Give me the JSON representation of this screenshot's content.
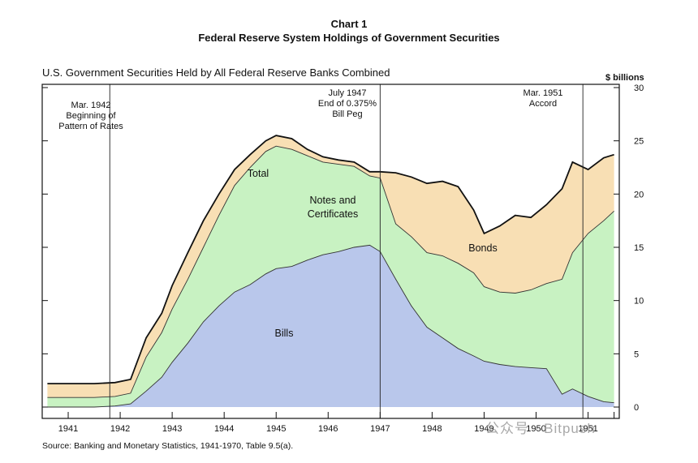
{
  "header": {
    "chart_number": "Chart 1",
    "title": "Federal Reserve System Holdings of Government Securities"
  },
  "subtitle": "U.S. Government Securities Held by All Federal Reserve Banks Combined",
  "unit_label": "$ billions",
  "source": "Source:  Banking and Monetary Statistics, 1941-1970, Table 9.5(a).",
  "watermark": "公众号 · Bitpush",
  "colors": {
    "bills": "#b9c7eb",
    "notes": "#c8f2c2",
    "bonds": "#f8dfb4",
    "line": "#111111"
  },
  "chart_data": {
    "type": "area",
    "stacked": true,
    "title": "Federal Reserve System Holdings of Government Securities",
    "subtitle": "U.S. Government Securities Held by All Federal Reserve Banks Combined",
    "ylabel": "$ billions",
    "ylim": [
      0,
      30
    ],
    "yticks": [
      0,
      5,
      10,
      15,
      20,
      25,
      30
    ],
    "xlim": [
      1940.5,
      1951.6
    ],
    "x_tick_labels": [
      "1941",
      "1942",
      "1943",
      "1944",
      "1945",
      "1946",
      "1947",
      "1948",
      "1949",
      "1950",
      "1951"
    ],
    "x": [
      1940.6,
      1941.0,
      1941.5,
      1941.9,
      1942.2,
      1942.5,
      1942.8,
      1943.0,
      1943.3,
      1943.6,
      1943.9,
      1944.2,
      1944.5,
      1944.8,
      1945.0,
      1945.3,
      1945.6,
      1945.9,
      1946.2,
      1946.5,
      1946.8,
      1947.0,
      1947.3,
      1947.6,
      1947.9,
      1948.2,
      1948.5,
      1948.8,
      1949.0,
      1949.3,
      1949.6,
      1949.9,
      1950.2,
      1950.5,
      1950.7,
      1951.0,
      1951.3,
      1951.5
    ],
    "series": [
      {
        "name": "Bills",
        "values": [
          0.0,
          0.0,
          0.0,
          0.1,
          0.3,
          1.5,
          2.8,
          4.2,
          6.0,
          8.0,
          9.5,
          10.8,
          11.5,
          12.5,
          13.0,
          13.2,
          13.8,
          14.3,
          14.6,
          15.0,
          15.2,
          14.6,
          12.0,
          9.5,
          7.5,
          6.5,
          5.5,
          4.8,
          4.3,
          4.0,
          3.8,
          3.7,
          3.6,
          1.2,
          1.7,
          1.0,
          0.5,
          0.4
        ]
      },
      {
        "name": "Notes and Certificates",
        "values": [
          0.9,
          0.9,
          0.9,
          0.9,
          1.0,
          3.2,
          4.2,
          5.0,
          6.0,
          7.0,
          8.5,
          10.0,
          11.0,
          11.5,
          11.5,
          11.0,
          9.8,
          8.7,
          8.2,
          7.6,
          6.5,
          6.9,
          5.2,
          6.5,
          7.0,
          7.7,
          8.0,
          7.8,
          7.0,
          6.8,
          6.9,
          7.3,
          8.0,
          10.8,
          12.8,
          15.3,
          17.0,
          18.0
        ]
      },
      {
        "name": "Bonds",
        "values": [
          1.3,
          1.3,
          1.3,
          1.3,
          1.3,
          1.8,
          1.8,
          2.2,
          2.5,
          2.5,
          2.0,
          1.5,
          1.2,
          1.0,
          1.0,
          1.0,
          0.6,
          0.5,
          0.4,
          0.4,
          0.4,
          0.6,
          4.8,
          5.6,
          6.5,
          7.0,
          7.2,
          5.9,
          5.0,
          6.2,
          7.3,
          6.8,
          7.4,
          8.5,
          8.5,
          6.0,
          5.9,
          5.3
        ]
      }
    ],
    "total": {
      "name": "Total",
      "values": [
        2.2,
        2.2,
        2.2,
        2.3,
        2.6,
        6.5,
        8.8,
        11.4,
        14.5,
        17.5,
        20.0,
        22.3,
        23.7,
        25.0,
        25.5,
        25.2,
        24.2,
        23.5,
        23.2,
        23.0,
        22.1,
        22.1,
        22.0,
        21.6,
        21.0,
        21.2,
        20.7,
        18.5,
        16.3,
        17.0,
        18.0,
        17.8,
        19.0,
        20.5,
        23.0,
        22.3,
        23.4,
        23.7
      ]
    },
    "annotations": [
      {
        "x": 1941.8,
        "lines": [
          "Mar. 1942",
          "Beginning of",
          "Pattern of Rates"
        ]
      },
      {
        "x": 1947.0,
        "lines": [
          "July 1947",
          "End of 0.375%",
          "Bill Peg"
        ]
      },
      {
        "x": 1950.9,
        "lines": [
          "Mar. 1951",
          "Accord"
        ]
      }
    ],
    "area_labels": [
      {
        "series": "Total",
        "lines": [
          "Total"
        ]
      },
      {
        "series": "Notes and Certificates",
        "lines": [
          "Notes and",
          "Certificates"
        ]
      },
      {
        "series": "Bonds",
        "lines": [
          "Bonds"
        ]
      },
      {
        "series": "Bills",
        "lines": [
          "Bills"
        ]
      }
    ]
  }
}
